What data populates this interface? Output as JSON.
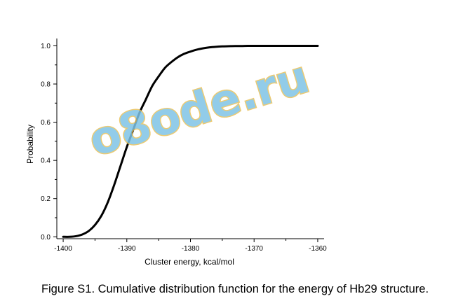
{
  "caption": "Figure S1. Cumulative distribution function for the energy of Hb29 structure.",
  "watermark": "o8ode.ru",
  "chart_data": {
    "type": "line",
    "xlabel": "Cluster energy, kcal/mol",
    "ylabel": "Probability",
    "xlim": [
      -1401,
      -1359
    ],
    "ylim": [
      -0.01,
      1.02
    ],
    "xticks": [
      -1400,
      -1390,
      -1380,
      -1370,
      -1360
    ],
    "xtick_labels": [
      "-1400",
      "-1390",
      "-1380",
      "-1370",
      "-1360"
    ],
    "yticks": [
      0.0,
      0.2,
      0.4,
      0.6,
      0.8,
      1.0
    ],
    "ytick_labels": [
      "0.0",
      "0.2",
      "0.4",
      "0.6",
      "0.8",
      "1.0"
    ],
    "grid": false,
    "line_color": "#000000",
    "series": [
      {
        "x": [
          -1400,
          -1399,
          -1398,
          -1397,
          -1396,
          -1395,
          -1394,
          -1393,
          -1392,
          -1391,
          -1390,
          -1389,
          -1388,
          -1387,
          -1386,
          -1385,
          -1384,
          -1383,
          -1382,
          -1381,
          -1380,
          -1379,
          -1378,
          -1377,
          -1376,
          -1375,
          -1374,
          -1373,
          -1372,
          -1371,
          -1370,
          -1368,
          -1366,
          -1364,
          -1362,
          -1360
        ],
        "y": [
          0.0,
          0.0,
          0.003,
          0.012,
          0.03,
          0.062,
          0.11,
          0.18,
          0.27,
          0.37,
          0.47,
          0.56,
          0.65,
          0.72,
          0.79,
          0.84,
          0.885,
          0.915,
          0.94,
          0.958,
          0.97,
          0.98,
          0.987,
          0.992,
          0.995,
          0.997,
          0.998,
          0.999,
          0.999,
          1.0,
          1.0,
          1.0,
          1.0,
          1.0,
          1.0,
          1.0
        ]
      }
    ]
  }
}
